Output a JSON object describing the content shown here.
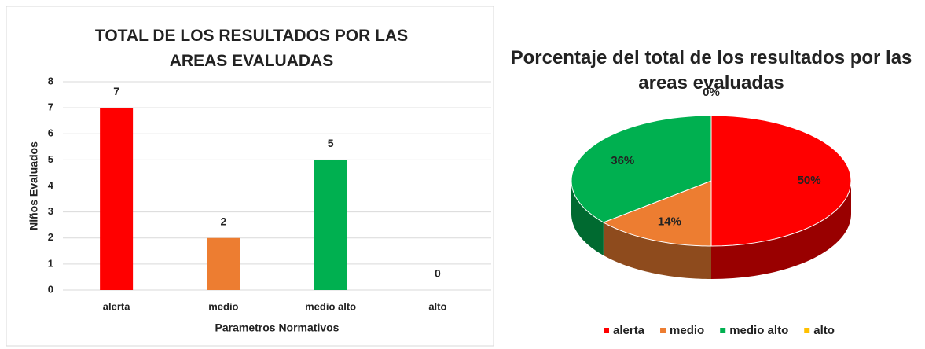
{
  "chart_data": [
    {
      "type": "bar",
      "title": "TOTAL DE LOS RESULTADOS POR LAS AREAS EVALUADAS",
      "x_label": "Parametros Normativos",
      "y_label": "Niños Evaluados",
      "categories": [
        "alerta",
        "medio",
        "medio alto",
        "alto"
      ],
      "values": [
        7,
        2,
        5,
        0
      ],
      "colors": [
        "#ff0000",
        "#ed7d31",
        "#00b050",
        "#ffc000"
      ],
      "ylim": [
        0,
        8
      ],
      "yticks": [
        0,
        1,
        2,
        3,
        4,
        5,
        6,
        7,
        8
      ],
      "grid": true
    },
    {
      "type": "pie",
      "title": "Porcentaje del total de los resultados por las areas evaluadas",
      "categories": [
        "alerta",
        "medio",
        "medio alto",
        "alto"
      ],
      "values": [
        50,
        14,
        36,
        0
      ],
      "value_labels": [
        "50%",
        "14%",
        "36%",
        "0%"
      ],
      "colors": [
        "#ff0000",
        "#ed7d31",
        "#00b050",
        "#ffc000"
      ],
      "legend": "bottom"
    }
  ]
}
